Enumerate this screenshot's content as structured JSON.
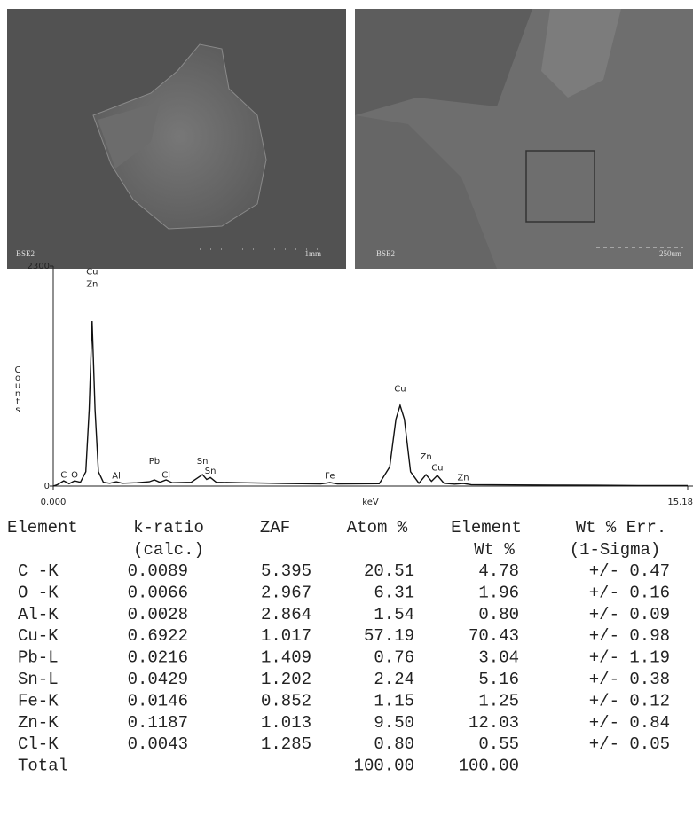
{
  "images": [
    {
      "label": "BSE2",
      "scale": "1mm"
    },
    {
      "label": "BSE2",
      "scale": "250um"
    }
  ],
  "chart_data": {
    "type": "line",
    "xlabel": "keV",
    "ylabel": "Counts",
    "xlim": [
      0,
      15.18
    ],
    "ylim": [
      0,
      2300
    ],
    "xticks": [
      {
        "value": 0,
        "label": "0.000"
      },
      15.18
    ],
    "yticks": [
      0,
      2300
    ],
    "color": "#111",
    "x": [
      0,
      0.1,
      0.25,
      0.38,
      0.51,
      0.65,
      0.78,
      0.86,
      0.93,
      1.0,
      1.08,
      1.2,
      1.35,
      1.51,
      1.65,
      2.0,
      2.3,
      2.42,
      2.55,
      2.7,
      2.85,
      3.3,
      3.57,
      3.67,
      3.76,
      3.9,
      4.5,
      5.5,
      6.4,
      6.62,
      6.8,
      7.8,
      8.05,
      8.2,
      8.3,
      8.4,
      8.55,
      8.75,
      8.92,
      9.05,
      9.19,
      9.35,
      9.6,
      9.81,
      10,
      11,
      12,
      13,
      14,
      15.18
    ],
    "values": [
      0,
      15,
      55,
      25,
      55,
      40,
      150,
      800,
      1725,
      800,
      150,
      40,
      30,
      45,
      30,
      35,
      45,
      65,
      40,
      65,
      35,
      40,
      120,
      70,
      90,
      40,
      35,
      28,
      22,
      37,
      22,
      25,
      200,
      700,
      844,
      700,
      150,
      30,
      120,
      50,
      111,
      30,
      20,
      28,
      15,
      12,
      10,
      8,
      6,
      5
    ],
    "annotations": [
      {
        "text": "Cu",
        "x": 0.93,
        "y": 2210
      },
      {
        "text": "Zn",
        "x": 0.93,
        "y": 2080
      },
      {
        "text": "C",
        "x": 0.25,
        "y": 90
      },
      {
        "text": "O",
        "x": 0.51,
        "y": 90
      },
      {
        "text": "Al",
        "x": 1.51,
        "y": 80
      },
      {
        "text": "Pb",
        "x": 2.42,
        "y": 230
      },
      {
        "text": "Cl",
        "x": 2.7,
        "y": 90
      },
      {
        "text": "Sn",
        "x": 3.57,
        "y": 230
      },
      {
        "text": "Sn",
        "x": 3.76,
        "y": 130
      },
      {
        "text": "Fe",
        "x": 6.62,
        "y": 80
      },
      {
        "text": "Cu",
        "x": 8.3,
        "y": 990
      },
      {
        "text": "Zn",
        "x": 8.92,
        "y": 280
      },
      {
        "text": "Cu",
        "x": 9.19,
        "y": 160
      },
      {
        "text": "Zn",
        "x": 9.81,
        "y": 60
      }
    ]
  },
  "table": {
    "header": [
      [
        "Element",
        "k-ratio",
        "ZAF",
        "Atom %",
        "Element",
        "Wt % Err."
      ],
      [
        "(calc.)",
        "Wt %",
        "(1-Sigma)"
      ]
    ],
    "rows": [
      [
        "C -K",
        "0.0089",
        "5.395",
        "20.51",
        "4.78",
        "+/- 0.47"
      ],
      [
        "O -K",
        "0.0066",
        "2.967",
        "6.31",
        "1.96",
        "+/- 0.16"
      ],
      [
        "Al-K",
        "0.0028",
        "2.864",
        "1.54",
        "0.80",
        "+/- 0.09"
      ],
      [
        "Cu-K",
        "0.6922",
        "1.017",
        "57.19",
        "70.43",
        "+/- 0.98"
      ],
      [
        "Pb-L",
        "0.0216",
        "1.409",
        "0.76",
        "3.04",
        "+/- 1.19"
      ],
      [
        "Sn-L",
        "0.0429",
        "1.202",
        "2.24",
        "5.16",
        "+/- 0.38"
      ],
      [
        "Fe-K",
        "0.0146",
        "0.852",
        "1.15",
        "1.25",
        "+/- 0.12"
      ],
      [
        "Zn-K",
        "0.1187",
        "1.013",
        "9.50",
        "12.03",
        "+/- 0.84"
      ],
      [
        "Cl-K",
        "0.0043",
        "1.285",
        "0.80",
        "0.55",
        "+/- 0.05"
      ]
    ],
    "total": {
      "label": "Total",
      "atom": "100.00",
      "wt": "100.00"
    }
  }
}
